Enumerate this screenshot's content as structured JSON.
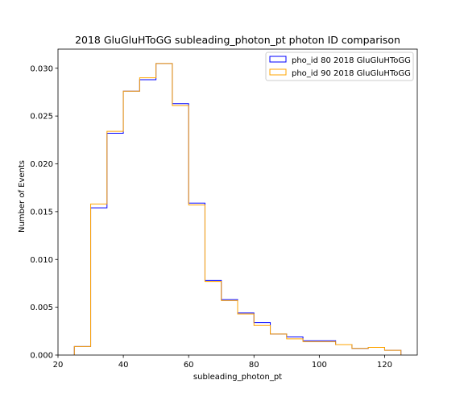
{
  "chart_data": {
    "type": "histogram-step",
    "title": "2018 GluGluHToGG subleading_photon_pt photon ID comparison",
    "xlabel": "subleading_photon_pt",
    "ylabel": "Number of Events",
    "xlim": [
      20,
      130
    ],
    "ylim": [
      0,
      0.032
    ],
    "xticks": [
      20,
      40,
      60,
      80,
      100,
      120
    ],
    "yticks": [
      0.0,
      0.005,
      0.01,
      0.015,
      0.02,
      0.025,
      0.03
    ],
    "ytick_labels": [
      "0.000",
      "0.005",
      "0.010",
      "0.015",
      "0.020",
      "0.025",
      "0.030"
    ],
    "legend_placement": "top-right",
    "bin_edges": [
      25,
      30,
      35,
      40,
      45,
      50,
      55,
      60,
      65,
      70,
      75,
      80,
      85,
      90,
      95,
      100,
      105,
      110,
      115,
      120,
      125
    ],
    "series": [
      {
        "name": "pho_id 80 2018 GluGluHToGG",
        "color": "#0000ff",
        "values": [
          0.0009,
          0.0154,
          0.0232,
          0.0276,
          0.0288,
          0.0305,
          0.0263,
          0.0159,
          0.0078,
          0.0058,
          0.0044,
          0.0034,
          0.0022,
          0.0019,
          0.0015,
          0.0015,
          0.0011,
          0.0007,
          0.0008,
          0.0005
        ]
      },
      {
        "name": "pho_id 90 2018 GluGluHToGG",
        "color": "#ffa500",
        "values": [
          0.0009,
          0.0158,
          0.0234,
          0.0276,
          0.029,
          0.0305,
          0.0261,
          0.0157,
          0.0077,
          0.0057,
          0.0043,
          0.0031,
          0.0022,
          0.0017,
          0.0014,
          0.0014,
          0.0011,
          0.0007,
          0.0008,
          0.0005
        ]
      }
    ]
  }
}
